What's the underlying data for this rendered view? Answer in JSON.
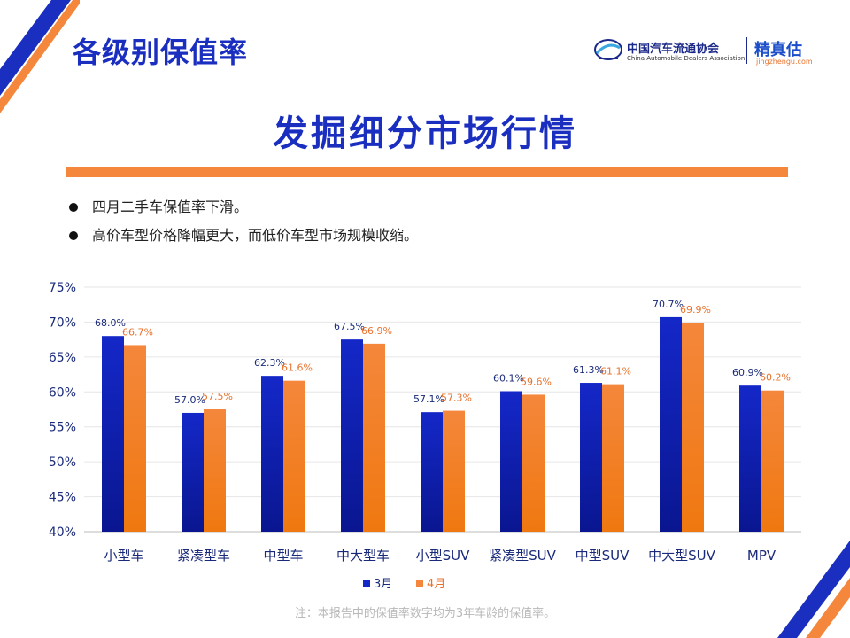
{
  "header": {
    "section_title": "各级别保值率",
    "main_title": "发掘细分市场行情"
  },
  "logo": {
    "cada_cn": "中国汽车流通协会",
    "cada_en": "China Automobile Dealers Association",
    "jzg_cn": "精真估",
    "jzg_url": "jingzhengu.com"
  },
  "bullets": [
    "四月二手车保值率下滑。",
    "高价车型价格降幅更大，而低价车型市场规模收缩。"
  ],
  "colors": {
    "accent_blue": "#1a2fbf",
    "accent_orange": "#f4873c"
  },
  "chart_data": {
    "type": "bar",
    "categories": [
      "小型车",
      "紧凑型车",
      "中型车",
      "中大型车",
      "小型SUV",
      "紧凑型SUV",
      "中型SUV",
      "中大型SUV",
      "MPV"
    ],
    "series": [
      {
        "name": "3月",
        "values": [
          68.0,
          57.0,
          62.3,
          67.5,
          57.1,
          60.1,
          61.3,
          70.7,
          60.9
        ],
        "labels": [
          "68.0%",
          "57.0%",
          "62.3%",
          "67.5%",
          "57.1%",
          "60.1%",
          "61.3%",
          "70.7%",
          "60.9%"
        ],
        "color": "#1428c8"
      },
      {
        "name": "4月",
        "values": [
          66.7,
          57.5,
          61.6,
          66.9,
          57.3,
          59.6,
          61.1,
          69.9,
          60.2
        ],
        "labels": [
          "66.7%",
          "57.5%",
          "61.6%",
          "66.9%",
          "57.3%",
          "59.6%",
          "61.1%",
          "69.9%",
          "60.2%"
        ],
        "color": "#f4873c"
      }
    ],
    "ylim": [
      40,
      75
    ],
    "yticks": [
      40,
      45,
      50,
      55,
      60,
      65,
      70,
      75
    ],
    "ytick_labels": [
      "40%",
      "45%",
      "50%",
      "55%",
      "60%",
      "65%",
      "70%",
      "75%"
    ],
    "grid": true,
    "legend": "bottom"
  },
  "note": "注：本报告中的保值率数字均为3年车龄的保值率。"
}
